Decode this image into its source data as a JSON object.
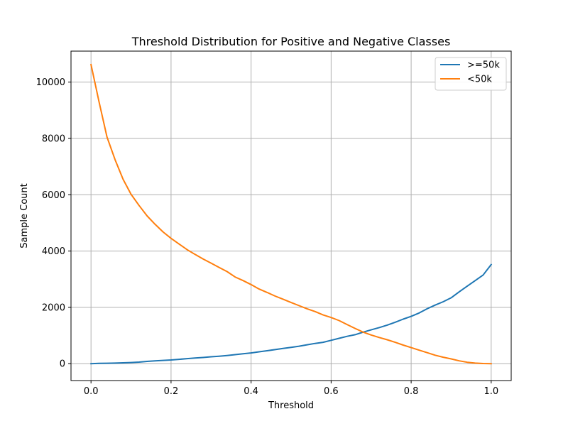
{
  "chart_data": {
    "type": "line",
    "title": "Threshold Distribution for Positive and Negative Classes",
    "xlabel": "Threshold",
    "ylabel": "Sample Count",
    "xlim": [
      -0.05,
      1.05
    ],
    "ylim": [
      -600,
      11100
    ],
    "xticks": [
      0.0,
      0.2,
      0.4,
      0.6,
      0.8,
      1.0
    ],
    "xtick_labels": [
      "0.0",
      "0.2",
      "0.4",
      "0.6",
      "0.8",
      "1.0"
    ],
    "yticks": [
      0,
      2000,
      4000,
      6000,
      8000,
      10000
    ],
    "ytick_labels": [
      "0",
      "2000",
      "4000",
      "6000",
      "8000",
      "10000"
    ],
    "grid": true,
    "legend_position": "top-right",
    "x": [
      0.0,
      0.02,
      0.04,
      0.06,
      0.08,
      0.1,
      0.12,
      0.14,
      0.16,
      0.18,
      0.2,
      0.22,
      0.24,
      0.26,
      0.28,
      0.3,
      0.32,
      0.34,
      0.36,
      0.38,
      0.4,
      0.42,
      0.44,
      0.46,
      0.48,
      0.5,
      0.52,
      0.54,
      0.56,
      0.58,
      0.6,
      0.62,
      0.64,
      0.66,
      0.68,
      0.7,
      0.72,
      0.74,
      0.76,
      0.78,
      0.8,
      0.82,
      0.84,
      0.86,
      0.88,
      0.9,
      0.92,
      0.94,
      0.96,
      0.98,
      1.0
    ],
    "series": [
      {
        "name": ">=50k",
        "color": "#1f77b4",
        "values": [
          0,
          10,
          15,
          20,
          30,
          40,
          55,
          80,
          100,
          115,
          130,
          155,
          180,
          200,
          220,
          245,
          265,
          290,
          320,
          350,
          380,
          420,
          460,
          500,
          540,
          580,
          620,
          670,
          720,
          760,
          830,
          900,
          970,
          1030,
          1120,
          1200,
          1280,
          1370,
          1470,
          1580,
          1680,
          1800,
          1950,
          2080,
          2200,
          2340,
          2550,
          2750,
          2950,
          3150,
          3520
        ]
      },
      {
        "name": "<50k",
        "color": "#ff7f0e",
        "values": [
          10620,
          9300,
          8050,
          7250,
          6550,
          6020,
          5620,
          5250,
          4950,
          4680,
          4450,
          4250,
          4050,
          3880,
          3720,
          3570,
          3420,
          3270,
          3080,
          2950,
          2810,
          2650,
          2530,
          2400,
          2290,
          2170,
          2060,
          1950,
          1850,
          1730,
          1640,
          1530,
          1390,
          1250,
          1120,
          1020,
          930,
          850,
          760,
          660,
          570,
          480,
          390,
          300,
          230,
          170,
          100,
          50,
          20,
          5,
          0
        ]
      }
    ]
  }
}
